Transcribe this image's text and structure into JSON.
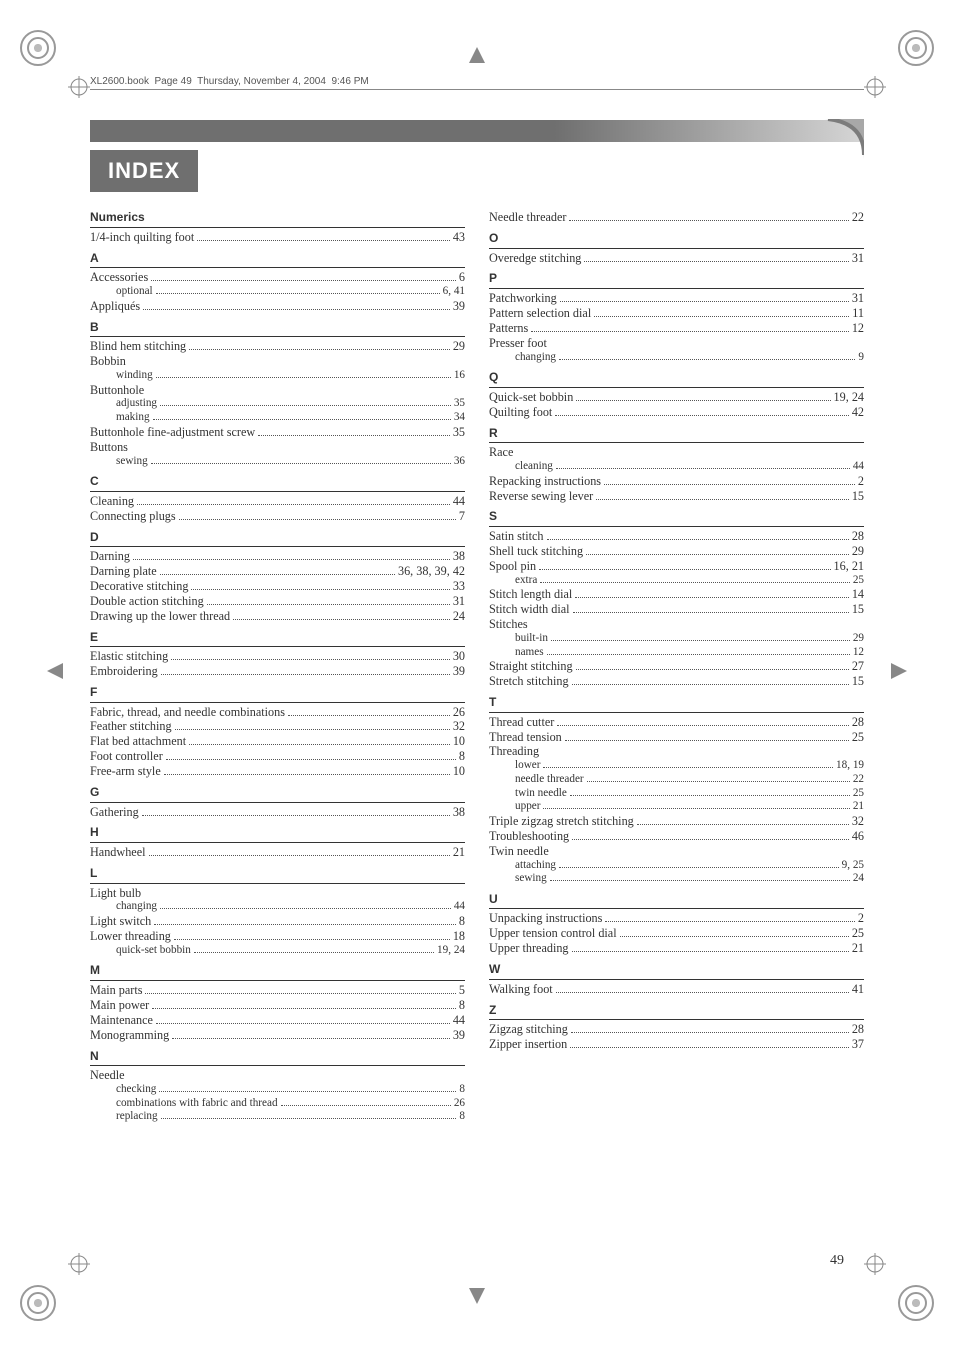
{
  "meta": {
    "headerline": "XL2600.book  Page 49  Thursday, November 4, 2004  9:46 PM"
  },
  "title": "INDEX",
  "page_number": "49",
  "left": [
    {
      "type": "header",
      "text": "Numerics"
    },
    {
      "type": "entry",
      "label": "1/4-inch quilting foot",
      "page": "43"
    },
    {
      "type": "header",
      "text": "A"
    },
    {
      "type": "entry",
      "label": "Accessories",
      "page": "6"
    },
    {
      "type": "sub",
      "label": "optional",
      "page": "6, 41"
    },
    {
      "type": "entry",
      "label": "Appliqués",
      "page": "39"
    },
    {
      "type": "header",
      "text": "B"
    },
    {
      "type": "entry",
      "label": "Blind hem stitching",
      "page": "29"
    },
    {
      "type": "entry",
      "label": "Bobbin",
      "noline": true
    },
    {
      "type": "sub",
      "label": "winding",
      "page": "16"
    },
    {
      "type": "entry",
      "label": "Buttonhole",
      "noline": true
    },
    {
      "type": "sub",
      "label": "adjusting",
      "page": "35"
    },
    {
      "type": "sub",
      "label": "making",
      "page": "34"
    },
    {
      "type": "entry",
      "label": "Buttonhole fine-adjustment screw",
      "page": "35"
    },
    {
      "type": "entry",
      "label": "Buttons",
      "noline": true
    },
    {
      "type": "sub",
      "label": "sewing",
      "page": "36"
    },
    {
      "type": "header",
      "text": "C"
    },
    {
      "type": "entry",
      "label": "Cleaning",
      "page": "44"
    },
    {
      "type": "entry",
      "label": "Connecting plugs",
      "page": "7"
    },
    {
      "type": "header",
      "text": "D"
    },
    {
      "type": "entry",
      "label": "Darning",
      "page": "38"
    },
    {
      "type": "entry",
      "label": "Darning plate",
      "page": "36, 38, 39, 42"
    },
    {
      "type": "entry",
      "label": "Decorative stitching",
      "page": "33"
    },
    {
      "type": "entry",
      "label": "Double action stitching",
      "page": "31"
    },
    {
      "type": "entry",
      "label": "Drawing up the lower thread",
      "page": "24"
    },
    {
      "type": "header",
      "text": "E"
    },
    {
      "type": "entry",
      "label": "Elastic stitching",
      "page": "30"
    },
    {
      "type": "entry",
      "label": "Embroidering",
      "page": "39"
    },
    {
      "type": "header",
      "text": "F"
    },
    {
      "type": "entry",
      "label": "Fabric, thread, and needle combinations",
      "page": "26"
    },
    {
      "type": "entry",
      "label": "Feather stitching",
      "page": "32"
    },
    {
      "type": "entry",
      "label": "Flat bed attachment",
      "page": "10"
    },
    {
      "type": "entry",
      "label": "Foot controller",
      "page": "8"
    },
    {
      "type": "entry",
      "label": "Free-arm style",
      "page": "10"
    },
    {
      "type": "header",
      "text": "G"
    },
    {
      "type": "entry",
      "label": "Gathering",
      "page": "38"
    },
    {
      "type": "header",
      "text": "H"
    },
    {
      "type": "entry",
      "label": "Handwheel",
      "page": "21"
    },
    {
      "type": "header",
      "text": "L"
    },
    {
      "type": "entry",
      "label": "Light bulb",
      "noline": true
    },
    {
      "type": "sub",
      "label": "changing",
      "page": "44"
    },
    {
      "type": "entry",
      "label": "Light switch",
      "page": "8"
    },
    {
      "type": "entry",
      "label": "Lower threading",
      "page": "18"
    },
    {
      "type": "sub",
      "label": "quick-set bobbin",
      "page": "19, 24"
    },
    {
      "type": "header",
      "text": "M"
    },
    {
      "type": "entry",
      "label": "Main parts",
      "page": "5"
    },
    {
      "type": "entry",
      "label": "Main power",
      "page": "8"
    },
    {
      "type": "entry",
      "label": "Maintenance",
      "page": "44"
    },
    {
      "type": "entry",
      "label": "Monogramming",
      "page": "39"
    },
    {
      "type": "header",
      "text": "N"
    },
    {
      "type": "entry",
      "label": "Needle",
      "noline": true
    },
    {
      "type": "sub",
      "label": "checking",
      "page": "8"
    },
    {
      "type": "sub",
      "label": "combinations with fabric and thread",
      "page": "26"
    },
    {
      "type": "sub",
      "label": "replacing",
      "page": "8"
    }
  ],
  "right": [
    {
      "type": "entry",
      "label": "Needle threader",
      "page": "22"
    },
    {
      "type": "header",
      "text": "O"
    },
    {
      "type": "entry",
      "label": "Overedge stitching",
      "page": "31"
    },
    {
      "type": "header",
      "text": "P"
    },
    {
      "type": "entry",
      "label": "Patchworking",
      "page": "31"
    },
    {
      "type": "entry",
      "label": "Pattern selection dial",
      "page": "11"
    },
    {
      "type": "entry",
      "label": "Patterns",
      "page": "12"
    },
    {
      "type": "entry",
      "label": "Presser foot",
      "noline": true
    },
    {
      "type": "sub",
      "label": "changing",
      "page": "9"
    },
    {
      "type": "header",
      "text": "Q"
    },
    {
      "type": "entry",
      "label": "Quick-set bobbin",
      "page": "19, 24"
    },
    {
      "type": "entry",
      "label": "Quilting foot",
      "page": "42"
    },
    {
      "type": "header",
      "text": "R"
    },
    {
      "type": "entry",
      "label": "Race",
      "noline": true
    },
    {
      "type": "sub",
      "label": "cleaning",
      "page": "44"
    },
    {
      "type": "entry",
      "label": "Repacking instructions",
      "page": "2"
    },
    {
      "type": "entry",
      "label": "Reverse sewing lever",
      "page": "15"
    },
    {
      "type": "header",
      "text": "S"
    },
    {
      "type": "entry",
      "label": "Satin stitch",
      "page": "28"
    },
    {
      "type": "entry",
      "label": "Shell tuck stitching",
      "page": "29"
    },
    {
      "type": "entry",
      "label": "Spool pin",
      "page": "16, 21"
    },
    {
      "type": "sub",
      "label": "extra",
      "page": "25"
    },
    {
      "type": "entry",
      "label": "Stitch length dial",
      "page": "14"
    },
    {
      "type": "entry",
      "label": "Stitch width dial",
      "page": "15"
    },
    {
      "type": "entry",
      "label": "Stitches",
      "noline": true
    },
    {
      "type": "sub",
      "label": "built-in",
      "page": "29"
    },
    {
      "type": "sub",
      "label": "names",
      "page": "12"
    },
    {
      "type": "entry",
      "label": "Straight stitching",
      "page": "27"
    },
    {
      "type": "entry",
      "label": "Stretch stitching",
      "page": "15"
    },
    {
      "type": "header",
      "text": "T"
    },
    {
      "type": "entry",
      "label": "Thread cutter",
      "page": "28"
    },
    {
      "type": "entry",
      "label": "Thread tension",
      "page": "25"
    },
    {
      "type": "entry",
      "label": "Threading",
      "noline": true
    },
    {
      "type": "sub",
      "label": "lower",
      "page": "18, 19"
    },
    {
      "type": "sub",
      "label": "needle threader",
      "page": "22"
    },
    {
      "type": "sub",
      "label": "twin needle",
      "page": "25"
    },
    {
      "type": "sub",
      "label": "upper",
      "page": "21"
    },
    {
      "type": "entry",
      "label": "Triple zigzag stretch stitching",
      "page": "32"
    },
    {
      "type": "entry",
      "label": "Troubleshooting",
      "page": "46"
    },
    {
      "type": "entry",
      "label": "Twin needle",
      "noline": true
    },
    {
      "type": "sub",
      "label": "attaching",
      "page": "9, 25"
    },
    {
      "type": "sub",
      "label": "sewing",
      "page": "24"
    },
    {
      "type": "header",
      "text": "U"
    },
    {
      "type": "entry",
      "label": "Unpacking instructions",
      "page": "2"
    },
    {
      "type": "entry",
      "label": "Upper tension control dial",
      "page": "25"
    },
    {
      "type": "entry",
      "label": "Upper threading",
      "page": "21"
    },
    {
      "type": "header",
      "text": "W"
    },
    {
      "type": "entry",
      "label": "Walking foot",
      "page": "41"
    },
    {
      "type": "header",
      "text": "Z"
    },
    {
      "type": "entry",
      "label": "Zigzag stitching",
      "page": "28"
    },
    {
      "type": "entry",
      "label": "Zipper insertion",
      "page": "37"
    }
  ]
}
